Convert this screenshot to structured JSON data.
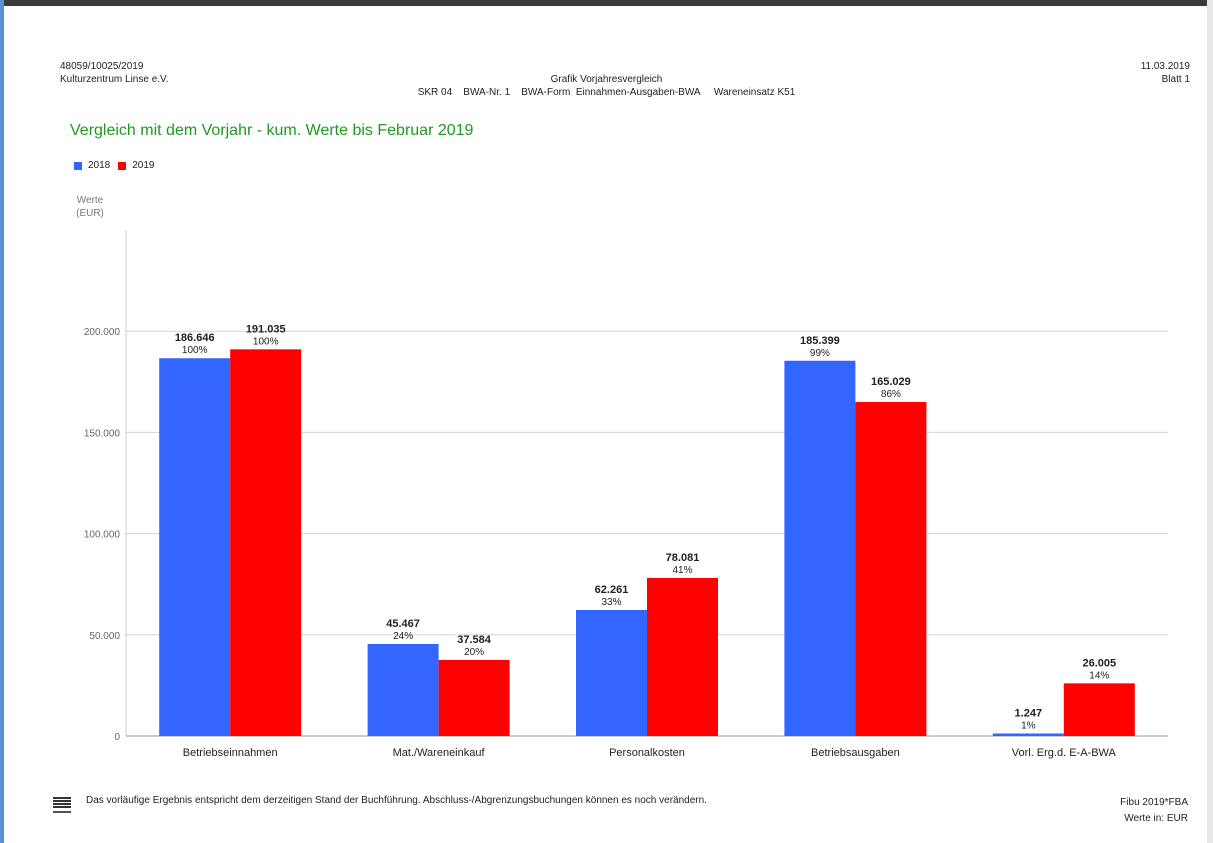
{
  "header": {
    "left_line1": "48059/10025/2019",
    "left_line2": "Kulturzentrum Linse e.V.",
    "center_line1": "Grafik Vorjahresvergleich",
    "center_line2": "SKR 04    BWA-Nr. 1    BWA-Form  Einnahmen-Ausgaben-BWA     Wareneinsatz K51",
    "right_line1": "11.03.2019",
    "right_line2": "Blatt 1"
  },
  "footer": {
    "note": "Das vorläufige Ergebnis entspricht dem derzeitigen Stand der Buchführung. Abschluss-/Abgrenzungsbuchungen können es noch verändern.",
    "right_line1": "Fibu 2019*FBA",
    "right_line2": "Werte in: EUR",
    "icon": "datev-logo-icon"
  },
  "chart_data": {
    "type": "bar",
    "title": "Vergleich mit dem Vorjahr - kum. Werte bis Februar 2019",
    "ylabel_line1": "Werte",
    "ylabel_line2": "(EUR)",
    "ylim": [
      0,
      250000
    ],
    "yticks": [
      0,
      50000,
      100000,
      150000,
      200000
    ],
    "ytick_labels": [
      "0",
      "50.000",
      "100.000",
      "150.000",
      "200.000"
    ],
    "grid": true,
    "legend_position": "top-left",
    "categories": [
      "Betriebseinnahmen",
      "Mat./Wareneinkauf",
      "Personalkosten",
      "Betriebsausgaben",
      "Vorl. Erg.d. E-A-BWA"
    ],
    "series": [
      {
        "name": "2018",
        "color": "#3366ff",
        "values": [
          186646,
          45467,
          62261,
          185399,
          1247
        ],
        "value_labels": [
          "186.646",
          "45.467",
          "62.261",
          "185.399",
          "1.247"
        ],
        "percent_labels": [
          "100%",
          "24%",
          "33%",
          "99%",
          "1%"
        ]
      },
      {
        "name": "2019",
        "color": "#ff0000",
        "values": [
          191035,
          37584,
          78081,
          165029,
          26005
        ],
        "value_labels": [
          "191.035",
          "37.584",
          "78.081",
          "165.029",
          "26.005"
        ],
        "percent_labels": [
          "100%",
          "20%",
          "41%",
          "86%",
          "14%"
        ]
      }
    ]
  }
}
